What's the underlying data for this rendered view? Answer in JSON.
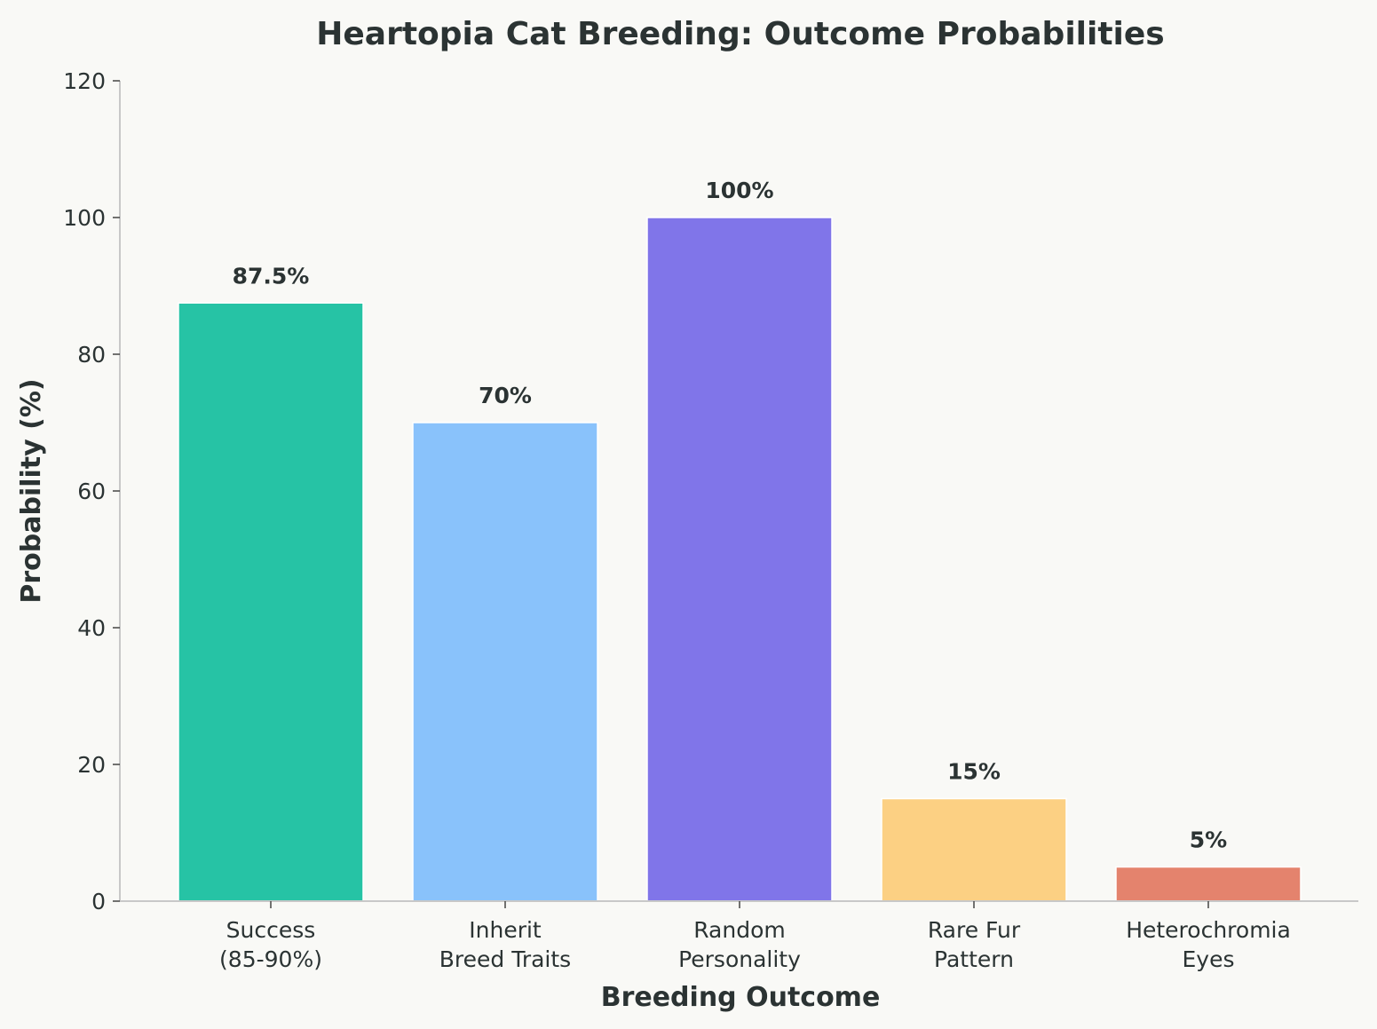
{
  "chart_data": {
    "type": "bar",
    "title": "Heartopia Cat Breeding: Outcome Probabilities",
    "xlabel": "Breeding Outcome",
    "ylabel": "Probability (%)",
    "categories": [
      [
        "Success",
        "(85-90%)"
      ],
      [
        "Inherit",
        "Breed Traits"
      ],
      [
        "Random",
        "Personality"
      ],
      [
        "Rare Fur",
        "Pattern"
      ],
      [
        "Heterochromia",
        "Eyes"
      ]
    ],
    "values": [
      87.5,
      70,
      100,
      15,
      5
    ],
    "value_labels": [
      "87.5%",
      "70%",
      "100%",
      "15%",
      "5%"
    ],
    "colors": [
      "#26c3a5",
      "#89c2fb",
      "#8075e9",
      "#fcd083",
      "#e4836d"
    ],
    "ylim": [
      0,
      120
    ],
    "yticks": [
      0,
      20,
      40,
      60,
      80,
      100,
      120
    ],
    "grid": false,
    "legend": "none"
  }
}
